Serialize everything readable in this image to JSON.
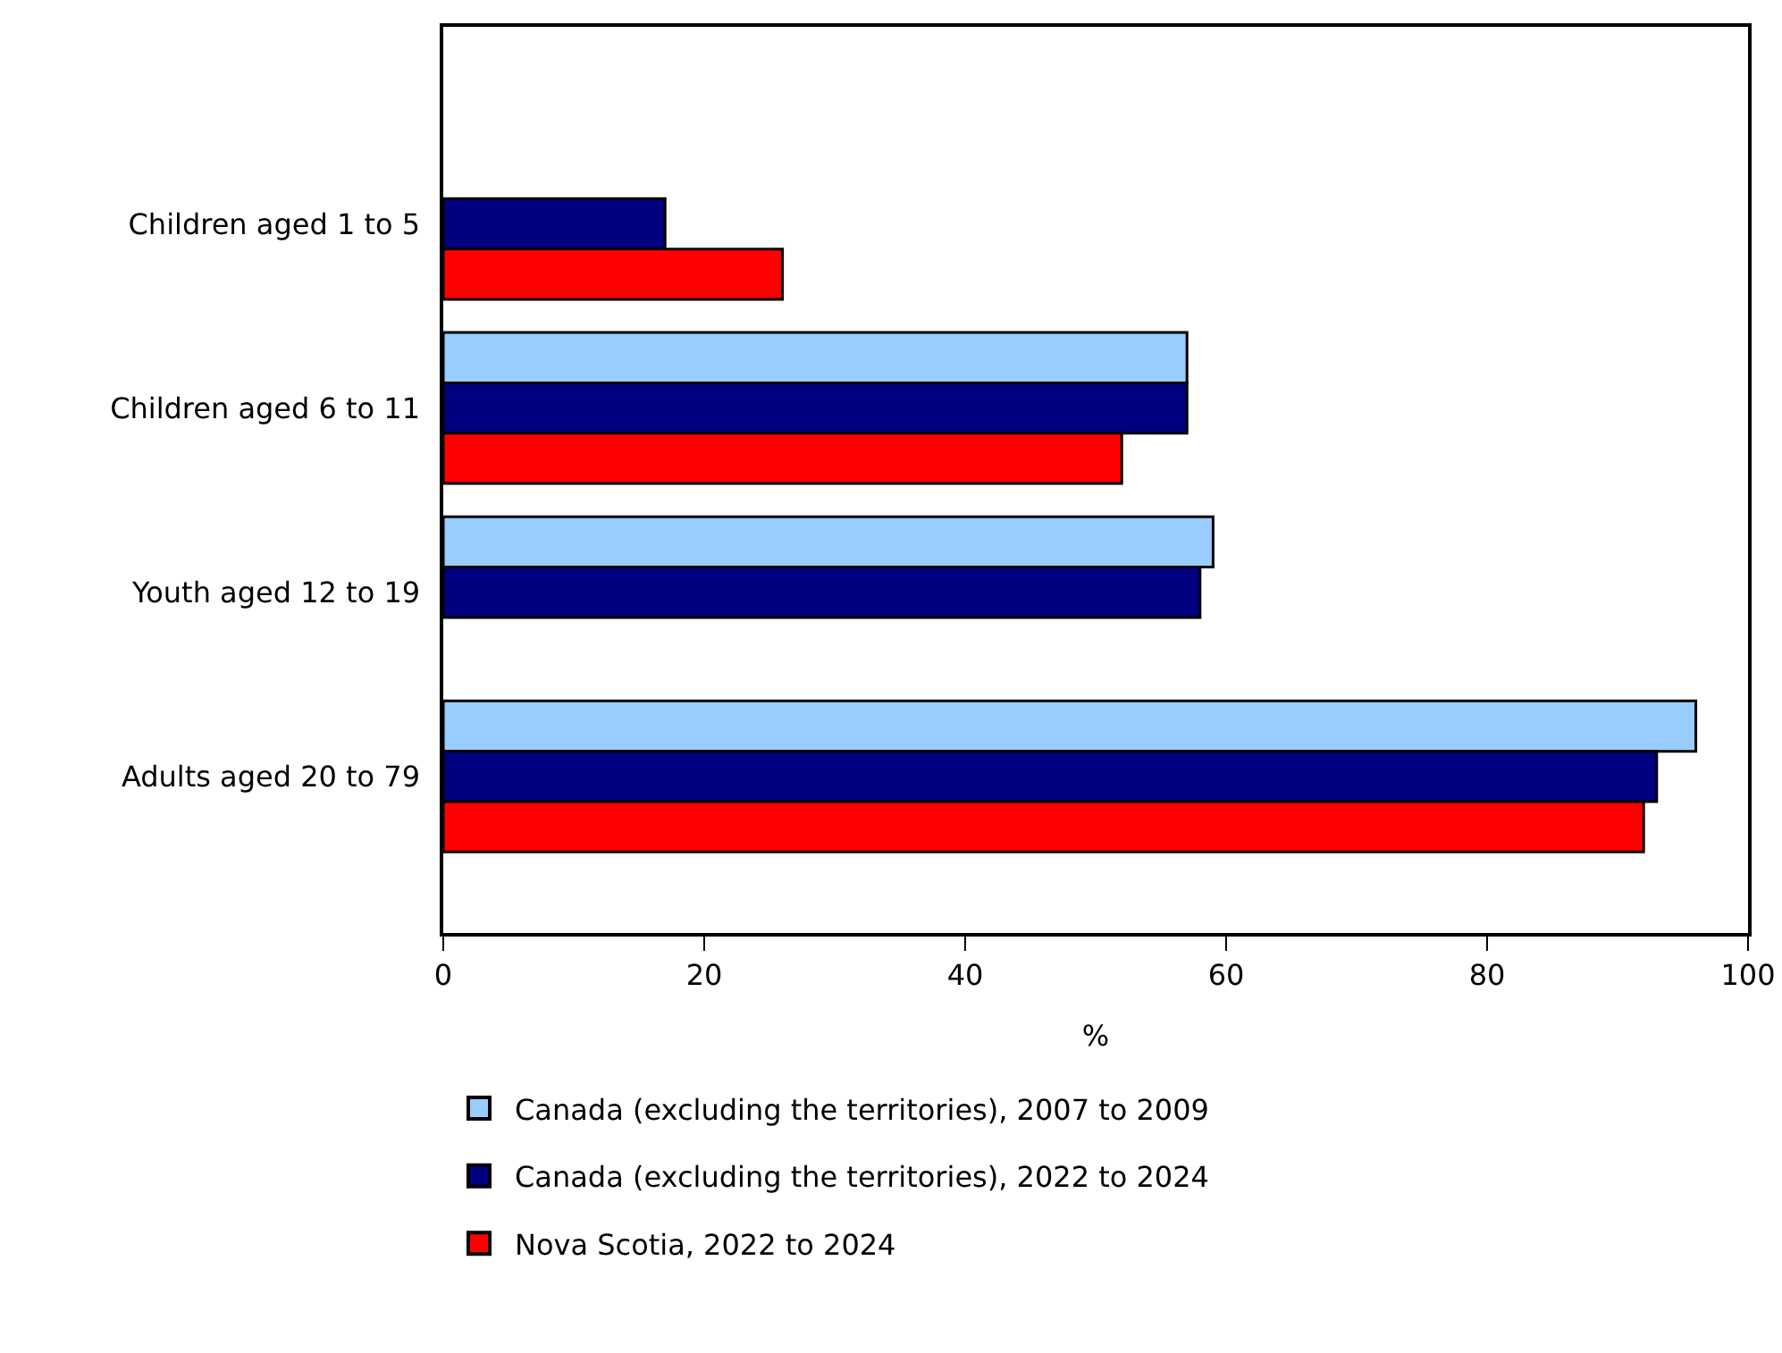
{
  "chart_data": {
    "type": "bar",
    "orientation": "horizontal",
    "xlabel": "%",
    "categories": [
      "Children aged 1 to 5",
      "Children aged 6 to 11",
      "Youth aged 12 to 19",
      "Adults aged 20 to 79"
    ],
    "series": [
      {
        "name": "Canada (excluding the territories), 2007 to 2009",
        "color": "#99ccff",
        "values": [
          null,
          57,
          59,
          96
        ]
      },
      {
        "name": "Canada (excluding the territories), 2022 to 2024",
        "color": "#000080",
        "values": [
          17,
          57,
          58,
          93
        ]
      },
      {
        "name": "Nova Scotia, 2022 to 2024",
        "color": "#ff0000",
        "values": [
          26,
          52,
          null,
          92
        ]
      }
    ],
    "xlim": [
      0,
      100
    ],
    "xticks": [
      0,
      20,
      40,
      60,
      80,
      100
    ],
    "legend": "bottom"
  }
}
